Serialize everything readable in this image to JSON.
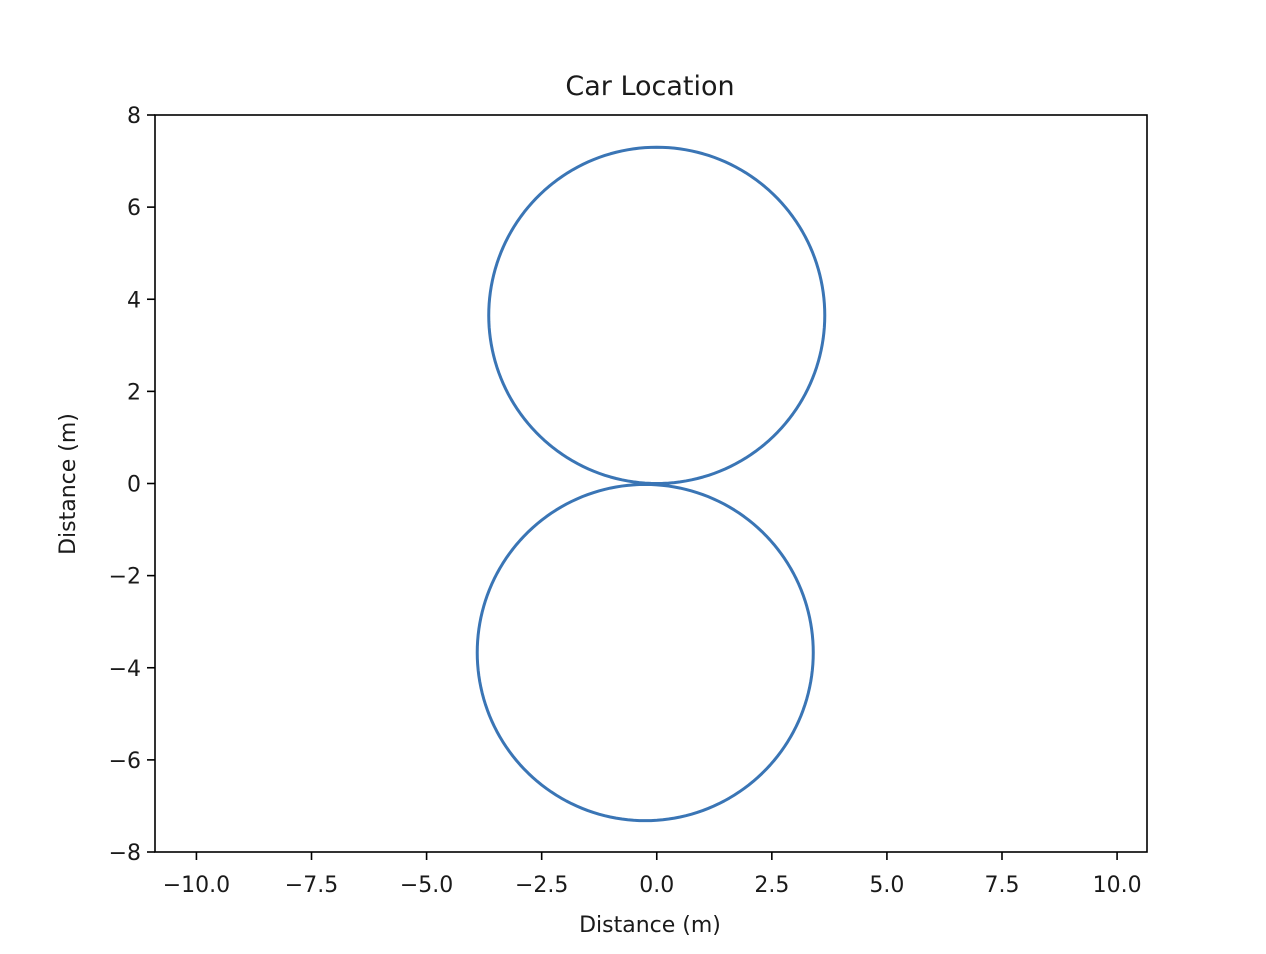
{
  "chart_data": {
    "type": "line",
    "title": "Car Location",
    "xlabel": "Distance (m)",
    "ylabel": "Distance (m)",
    "xlim": [
      -10.9,
      10.65
    ],
    "ylim": [
      -8,
      8
    ],
    "xticks": [
      -10.0,
      -7.5,
      -5.0,
      -2.5,
      0.0,
      2.5,
      5.0,
      7.5,
      10.0
    ],
    "xtick_labels": [
      "−10.0",
      "−7.5",
      "−5.0",
      "−2.5",
      "0.0",
      "2.5",
      "5.0",
      "7.5",
      "10.0"
    ],
    "yticks": [
      -8,
      -6,
      -4,
      -2,
      0,
      2,
      4,
      6,
      8
    ],
    "ytick_labels": [
      "−8",
      "−6",
      "−4",
      "−2",
      "0",
      "2",
      "4",
      "6",
      "8"
    ],
    "grid": false,
    "series": [
      {
        "color": "#3a75b5",
        "shape": "figure-eight",
        "loops": [
          {
            "center": [
              0.0,
              3.65
            ],
            "radius": 3.65
          },
          {
            "center": [
              -0.25,
              -3.67
            ],
            "radius": 3.65
          }
        ]
      }
    ]
  }
}
